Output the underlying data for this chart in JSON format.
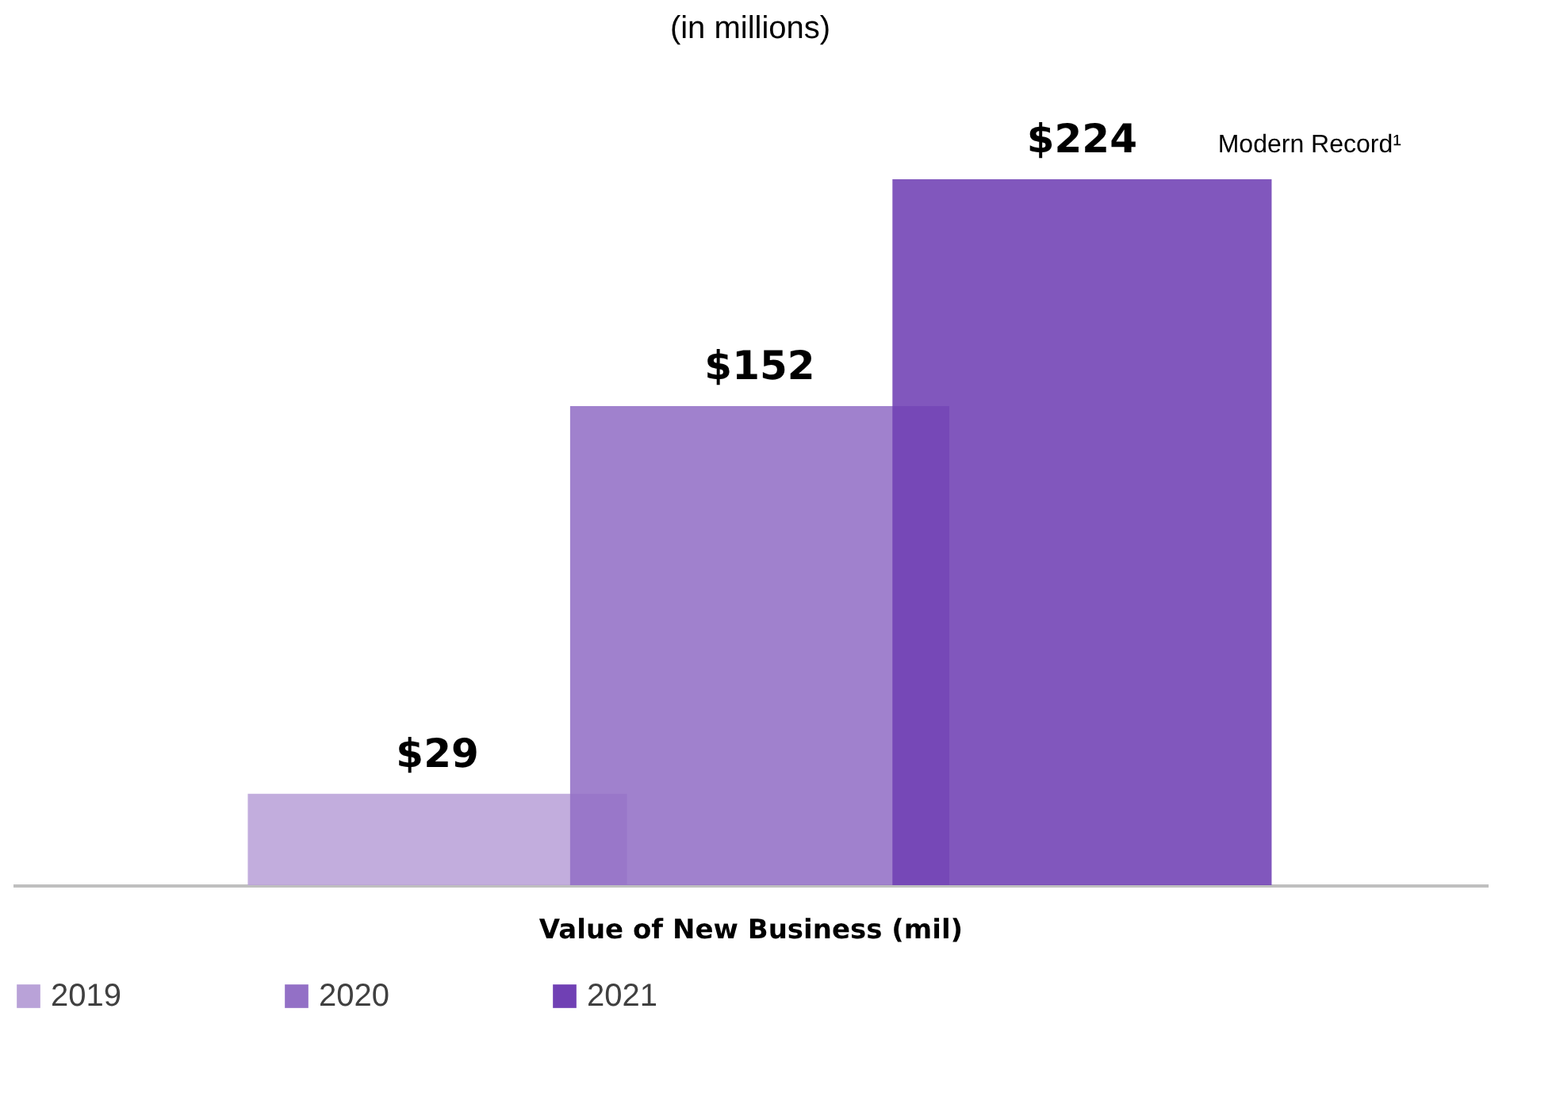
{
  "chart_data": {
    "type": "bar",
    "title": "(in millions)",
    "xlabel": "Value of New Business (mil)",
    "categories": [
      null
    ],
    "series": [
      {
        "name": "2019",
        "color": "#b9a2d8",
        "values": [
          29
        ],
        "value_labels": [
          "$29"
        ]
      },
      {
        "name": "2020",
        "color": "#9370c6",
        "values": [
          152
        ],
        "value_labels": [
          "$152"
        ]
      },
      {
        "name": "2021",
        "color": "#7040b4",
        "values": [
          224
        ],
        "value_labels": [
          "$224"
        ]
      }
    ],
    "annotations": [
      "Modern Record¹"
    ],
    "legend": "bottom",
    "grid": false
  }
}
